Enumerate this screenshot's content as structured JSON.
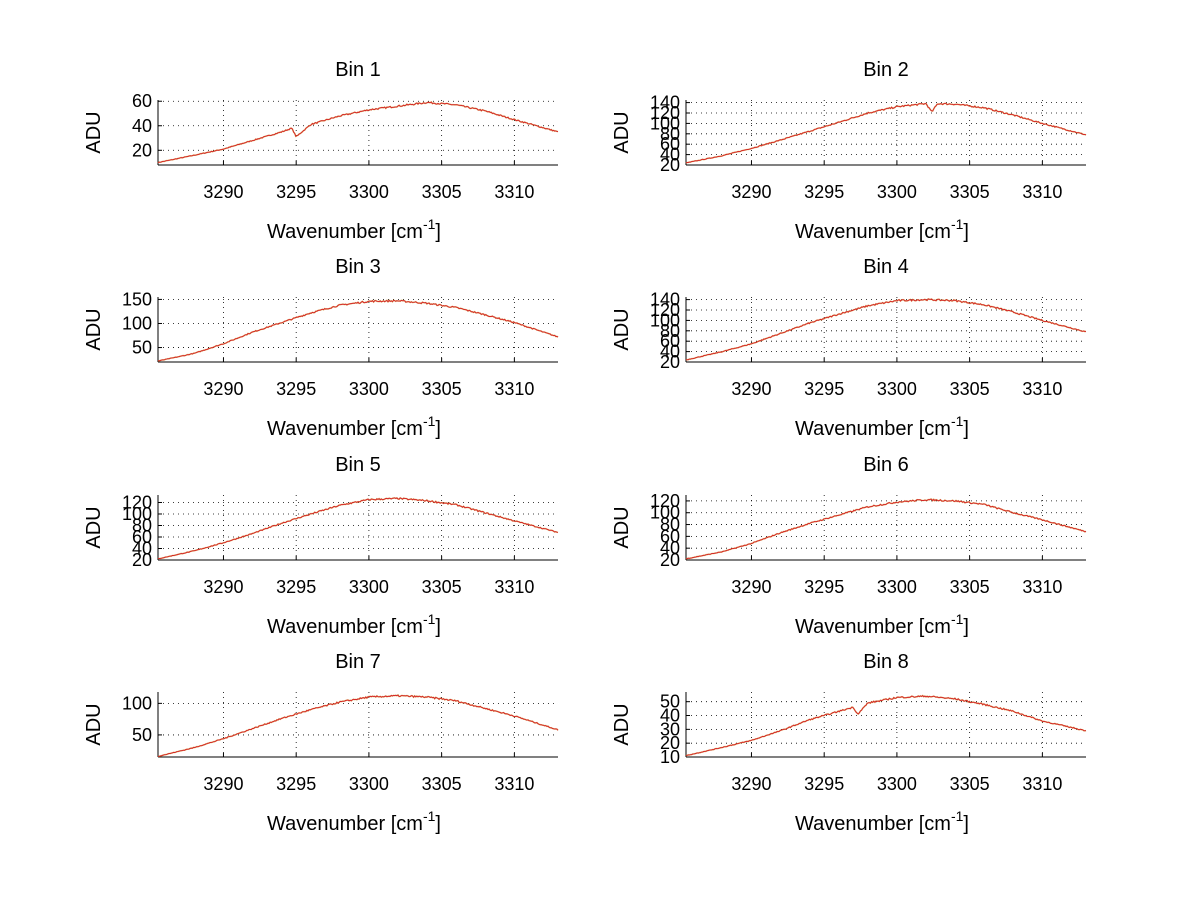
{
  "figure": {
    "background": "#ffffff"
  },
  "chart_data": [
    {
      "type": "line",
      "title": "Bin 1",
      "xlabel": "Wavenumber [cm",
      "xlabel_sup": "-1",
      "xlabel_end": "]",
      "ylabel": "ADU",
      "xlim": [
        3285.5,
        3313
      ],
      "ylim": [
        8,
        61
      ],
      "xticks": [
        3290,
        3295,
        3300,
        3305,
        3310
      ],
      "yticks": [
        20,
        40,
        60
      ],
      "grid": true,
      "series": [
        {
          "color": "#d62728",
          "x": [
            3285.5,
            3288,
            3290,
            3292,
            3294,
            3294.7,
            3295,
            3296,
            3298,
            3300,
            3302,
            3304,
            3305,
            3306,
            3308,
            3310,
            3313
          ],
          "values": [
            10,
            16,
            21,
            28,
            35,
            38,
            31,
            41,
            48,
            53,
            56,
            59,
            58,
            57,
            52,
            45,
            35
          ]
        }
      ]
    },
    {
      "type": "line",
      "title": "Bin 2",
      "xlabel": "Wavenumber [cm",
      "xlabel_sup": "-1",
      "xlabel_end": "]",
      "ylabel": "ADU",
      "xlim": [
        3285.5,
        3313
      ],
      "ylim": [
        20,
        145
      ],
      "xticks": [
        3290,
        3295,
        3300,
        3305,
        3310
      ],
      "yticks": [
        20,
        40,
        60,
        80,
        100,
        120,
        140
      ],
      "grid": true,
      "series": [
        {
          "color": "#d62728",
          "x": [
            3285.5,
            3288,
            3290,
            3292,
            3294,
            3296,
            3298,
            3300,
            3302,
            3302.4,
            3302.8,
            3304,
            3306,
            3308,
            3310,
            3313
          ],
          "values": [
            24,
            38,
            52,
            68,
            85,
            102,
            120,
            132,
            138,
            122,
            138,
            137,
            130,
            116,
            100,
            78
          ]
        }
      ]
    },
    {
      "type": "line",
      "title": "Bin 3",
      "xlabel": "Wavenumber [cm",
      "xlabel_sup": "-1",
      "xlabel_end": "]",
      "ylabel": "ADU",
      "xlim": [
        3285.5,
        3313
      ],
      "ylim": [
        20,
        155
      ],
      "xticks": [
        3290,
        3295,
        3300,
        3305,
        3310
      ],
      "yticks": [
        50,
        100,
        150
      ],
      "grid": true,
      "series": [
        {
          "color": "#d62728",
          "x": [
            3285.5,
            3288,
            3290,
            3292,
            3294,
            3296,
            3298,
            3300,
            3302,
            3304,
            3306,
            3308,
            3310,
            3313
          ],
          "values": [
            22,
            38,
            58,
            82,
            102,
            122,
            138,
            146,
            147,
            142,
            133,
            118,
            102,
            72
          ]
        }
      ]
    },
    {
      "type": "line",
      "title": "Bin 4",
      "xlabel": "Wavenumber [cm",
      "xlabel_sup": "-1",
      "xlabel_end": "]",
      "ylabel": "ADU",
      "xlim": [
        3285.5,
        3313
      ],
      "ylim": [
        20,
        145
      ],
      "xticks": [
        3290,
        3295,
        3300,
        3305,
        3310
      ],
      "yticks": [
        20,
        40,
        60,
        80,
        100,
        120,
        140
      ],
      "grid": true,
      "series": [
        {
          "color": "#d62728",
          "x": [
            3285.5,
            3288,
            3290,
            3292,
            3294,
            3296,
            3298,
            3300,
            3302,
            3304,
            3306,
            3308,
            3310,
            3313
          ],
          "values": [
            24,
            40,
            55,
            75,
            95,
            112,
            128,
            138,
            140,
            138,
            130,
            116,
            100,
            78
          ]
        }
      ]
    },
    {
      "type": "line",
      "title": "Bin 5",
      "xlabel": "Wavenumber [cm",
      "xlabel_sup": "-1",
      "xlabel_end": "]",
      "ylabel": "ADU",
      "xlim": [
        3285.5,
        3313
      ],
      "ylim": [
        20,
        133
      ],
      "xticks": [
        3290,
        3295,
        3300,
        3305,
        3310
      ],
      "yticks": [
        20,
        40,
        60,
        80,
        100,
        120
      ],
      "grid": true,
      "series": [
        {
          "color": "#d62728",
          "x": [
            3285.5,
            3288,
            3290,
            3292,
            3294,
            3296,
            3298,
            3300,
            3302,
            3304,
            3306,
            3308,
            3310,
            3313
          ],
          "values": [
            22,
            36,
            50,
            66,
            84,
            100,
            115,
            125,
            127,
            123,
            116,
            102,
            88,
            68
          ]
        }
      ]
    },
    {
      "type": "line",
      "title": "Bin 6",
      "xlabel": "Wavenumber [cm",
      "xlabel_sup": "-1",
      "xlabel_end": "]",
      "ylabel": "ADU",
      "xlim": [
        3285.5,
        3313
      ],
      "ylim": [
        20,
        130
      ],
      "xticks": [
        3290,
        3295,
        3300,
        3305,
        3310
      ],
      "yticks": [
        20,
        40,
        60,
        80,
        100,
        120
      ],
      "grid": true,
      "series": [
        {
          "color": "#d62728",
          "x": [
            3285.5,
            3288,
            3290,
            3292,
            3294,
            3296,
            3298,
            3300,
            3302,
            3304,
            3306,
            3308,
            3310,
            3313
          ],
          "values": [
            22,
            34,
            48,
            66,
            82,
            96,
            110,
            118,
            122,
            120,
            114,
            100,
            88,
            68
          ]
        }
      ]
    },
    {
      "type": "line",
      "title": "Bin 7",
      "xlabel": "Wavenumber [cm",
      "xlabel_sup": "-1",
      "xlabel_end": "]",
      "ylabel": "ADU",
      "xlim": [
        3285.5,
        3313
      ],
      "ylim": [
        15,
        118
      ],
      "xticks": [
        3290,
        3295,
        3300,
        3305,
        3310
      ],
      "yticks": [
        50,
        100
      ],
      "grid": true,
      "series": [
        {
          "color": "#d62728",
          "x": [
            3285.5,
            3288,
            3290,
            3292,
            3294,
            3296,
            3298,
            3300,
            3302,
            3304,
            3306,
            3308,
            3310,
            3313
          ],
          "values": [
            16,
            30,
            44,
            60,
            76,
            90,
            102,
            110,
            112,
            110,
            104,
            92,
            80,
            58
          ]
        }
      ]
    },
    {
      "type": "line",
      "title": "Bin 8",
      "xlabel": "Wavenumber [cm",
      "xlabel_sup": "-1",
      "xlabel_end": "]",
      "ylabel": "ADU",
      "xlim": [
        3285.5,
        3313
      ],
      "ylim": [
        10,
        57
      ],
      "xticks": [
        3290,
        3295,
        3300,
        3305,
        3310
      ],
      "yticks": [
        10,
        20,
        30,
        40,
        50
      ],
      "grid": true,
      "series": [
        {
          "color": "#d62728",
          "x": [
            3285.5,
            3288,
            3290,
            3292,
            3294,
            3296,
            3297,
            3297.3,
            3298,
            3300,
            3302,
            3304,
            3306,
            3308,
            3310,
            3313
          ],
          "values": [
            11,
            17,
            22,
            29,
            37,
            43,
            46,
            41,
            49,
            53,
            54,
            52,
            48,
            43,
            36,
            29
          ]
        }
      ]
    }
  ]
}
